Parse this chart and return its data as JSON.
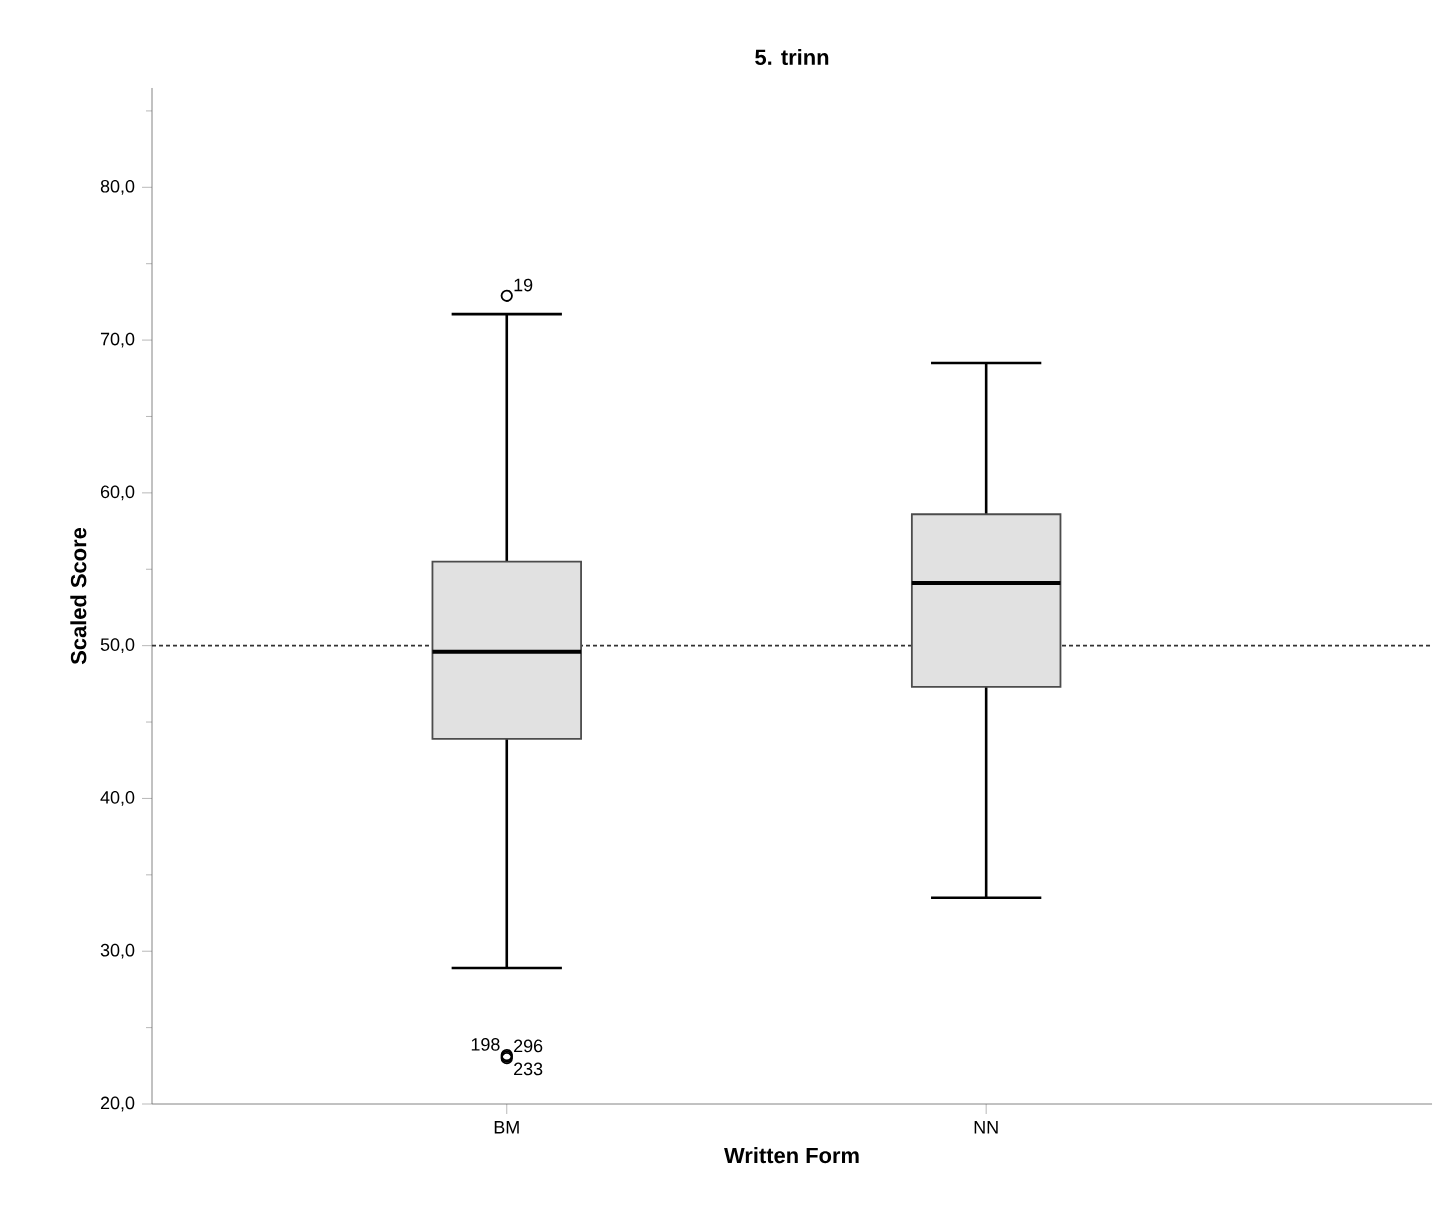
{
  "chart_data": {
    "type": "box",
    "title": "5. trinn",
    "xlabel": "Written Form",
    "ylabel": "Scaled Score",
    "categories": [
      "BM",
      "NN"
    ],
    "color": "#e1e1e1",
    "boxes": [
      {
        "low": 28.9,
        "q1": 43.9,
        "median": 49.6,
        "q3": 55.5,
        "high": 71.7,
        "outliers": [
          72.9,
          23.2,
          23.1,
          23.0
        ]
      },
      {
        "low": 33.5,
        "q1": 47.3,
        "median": 54.1,
        "q3": 58.6,
        "high": 68.5
      }
    ],
    "ylim": [
      20,
      86.5
    ],
    "yticks": [
      {
        "value": 20,
        "label": "20,0"
      },
      {
        "value": 25,
        "label": null
      },
      {
        "value": 30,
        "label": "30,0"
      },
      {
        "value": 35,
        "label": null
      },
      {
        "value": 40,
        "label": "40,0"
      },
      {
        "value": 45,
        "label": null
      },
      {
        "value": 50,
        "label": "50,0"
      },
      {
        "value": 55,
        "label": null
      },
      {
        "value": 60,
        "label": "60,0"
      },
      {
        "value": 65,
        "label": null
      },
      {
        "value": 70,
        "label": "70,0"
      },
      {
        "value": 75,
        "label": null
      },
      {
        "value": 80,
        "label": "80,0"
      },
      {
        "value": 85,
        "label": null
      }
    ],
    "ref_lines": [
      {
        "axis": "y",
        "value": 50,
        "line_style": "dotted",
        "color": "#333333"
      }
    ],
    "annotations": [
      "19",
      "198",
      "296",
      "233"
    ]
  }
}
